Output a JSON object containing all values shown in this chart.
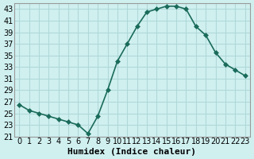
{
  "x": [
    0,
    1,
    2,
    3,
    4,
    5,
    6,
    7,
    8,
    9,
    10,
    11,
    12,
    13,
    14,
    15,
    16,
    17,
    18,
    19,
    20,
    21,
    22,
    23
  ],
  "y": [
    26.5,
    25.5,
    25.0,
    24.5,
    24.0,
    23.5,
    23.0,
    21.5,
    24.5,
    29.0,
    34.0,
    37.0,
    40.0,
    42.5,
    43.0,
    43.5,
    43.5,
    43.0,
    40.0,
    38.5,
    35.5,
    33.5,
    32.5,
    31.5
  ],
  "line_color": "#1a6b5a",
  "marker": "D",
  "markersize": 3,
  "bg_color": "#d0f0f0",
  "grid_color": "#b0d8d8",
  "xlabel": "Humidex (Indice chaleur)",
  "ylim": [
    21,
    44
  ],
  "xlim": [
    -0.5,
    23.5
  ],
  "yticks": [
    21,
    23,
    25,
    27,
    29,
    31,
    33,
    35,
    37,
    39,
    41,
    43
  ],
  "xticks": [
    0,
    1,
    2,
    3,
    4,
    5,
    6,
    7,
    8,
    9,
    10,
    11,
    12,
    13,
    14,
    15,
    16,
    17,
    18,
    19,
    20,
    21,
    22,
    23
  ],
  "xlabel_fontsize": 8,
  "tick_fontsize": 7
}
